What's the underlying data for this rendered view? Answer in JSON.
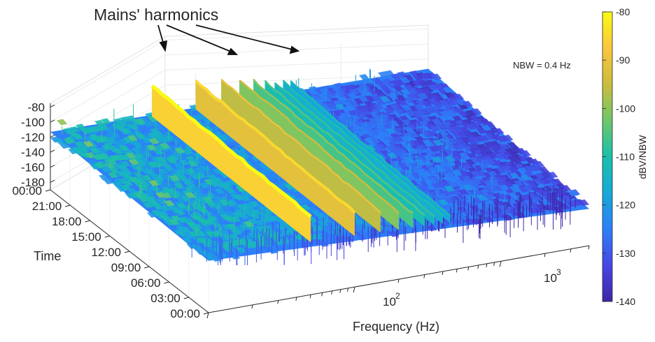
{
  "chart_data": {
    "type": "surface",
    "title": "",
    "annotation": "Mains' harmonics",
    "nbw_note": "NBW = 0.4 Hz",
    "xlabel": "Frequency (Hz)",
    "ylabel": "Time",
    "zlabel": "",
    "x_scale": "log",
    "x_ticks": [
      {
        "value": 100,
        "base": "10",
        "exp": "2"
      },
      {
        "value": 1000,
        "base": "10",
        "exp": "3"
      }
    ],
    "y_ticks": [
      "00:00",
      "03:00",
      "06:00",
      "09:00",
      "12:00",
      "15:00",
      "18:00",
      "21:00",
      "00:00"
    ],
    "z_ticks": [
      "-80",
      "-100",
      "-120",
      "-140",
      "-160",
      "-180"
    ],
    "zlim": [
      -190,
      -75
    ],
    "harmonics_hz": [
      50,
      100,
      150,
      200,
      250,
      300,
      350,
      400,
      450
    ],
    "harmonic_levels_dBV": [
      -80,
      -85,
      -90,
      -95,
      -100,
      -105,
      -108,
      -110,
      -112
    ],
    "noise_floor_dBV": {
      "low_freq": -115,
      "high_freq": -135
    },
    "colorbar": {
      "label": "dBV/NBW",
      "ticks": [
        "-80",
        "-90",
        "-100",
        "-110",
        "-120",
        "-130",
        "-140"
      ],
      "range": [
        -140,
        -80
      ],
      "colormap": "parula",
      "colors": [
        "#3e26a8",
        "#4747e5",
        "#2d7ff8",
        "#17a9d8",
        "#19c0ab",
        "#6ec76a",
        "#cbbc3d",
        "#fac63c",
        "#f9fb15"
      ]
    }
  }
}
